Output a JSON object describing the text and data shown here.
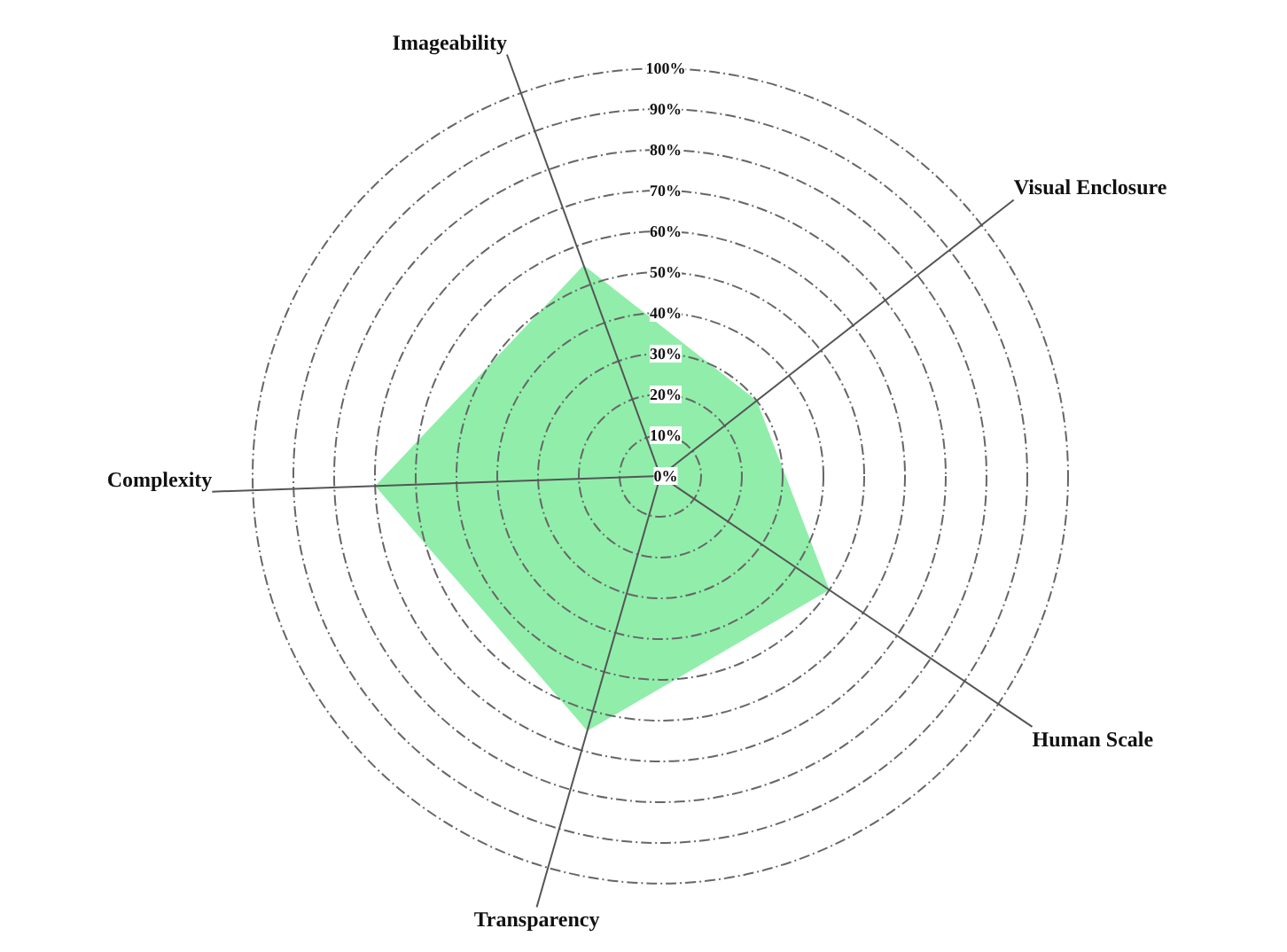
{
  "chart_data": {
    "type": "radar",
    "categories": [
      "Imageability",
      "Visual Enclosure",
      "Human Scale",
      "Transparency",
      "Complexity"
    ],
    "series": [
      {
        "color": "#90eeaa",
        "values": [
          55,
          30,
          50,
          65,
          70
        ]
      }
    ],
    "ylim": [
      0,
      100
    ],
    "yticks": [
      {
        "value": 0,
        "label": "0%"
      },
      {
        "value": 10,
        "label": "10%"
      },
      {
        "value": 20,
        "label": "20%"
      },
      {
        "value": 30,
        "label": "30%"
      },
      {
        "value": 40,
        "label": "40%"
      },
      {
        "value": 50,
        "label": "50%"
      },
      {
        "value": 60,
        "label": "60%"
      },
      {
        "value": 70,
        "label": "70%"
      },
      {
        "value": 80,
        "label": "80%"
      },
      {
        "value": 90,
        "label": "90%"
      },
      {
        "value": 100,
        "label": "100%"
      }
    ],
    "grid": true
  }
}
